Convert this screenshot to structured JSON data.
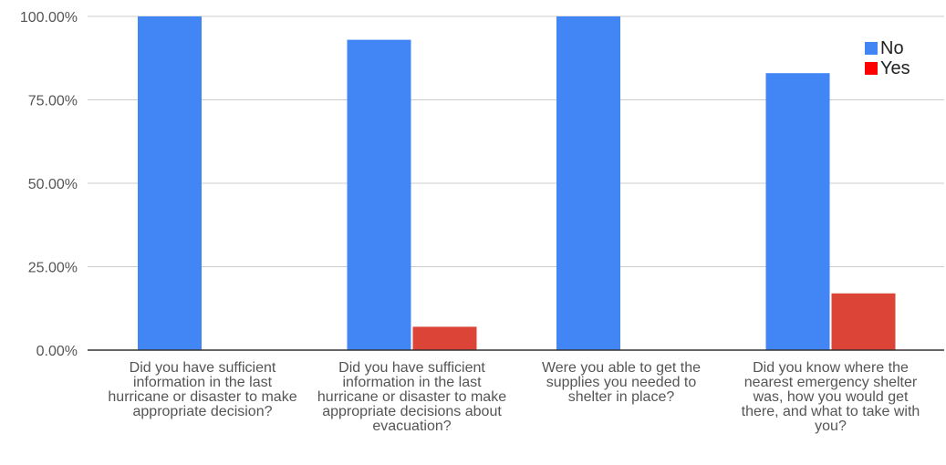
{
  "chart_data": {
    "type": "bar",
    "categories": [
      "Did you have sufficient information in the last hurricane or disaster to make appropriate decision?",
      "Did you have sufficient information in the last hurricane or disaster to make appropriate decisions about evacuation?",
      "Were you able to get the supplies you needed to shelter in place?",
      "Did you know where the nearest emergency shelter was, how you would get there, and what to take with you?"
    ],
    "series": [
      {
        "name": "No",
        "color": "#4285f4",
        "values": [
          100,
          93,
          100,
          83
        ]
      },
      {
        "name": "Yes",
        "color": "#db4437",
        "values": [
          0,
          7,
          0,
          17
        ]
      }
    ],
    "yticks": [
      "0.00%",
      "25.00%",
      "50.00%",
      "75.00%",
      "100.00%"
    ],
    "ylim": [
      0,
      100
    ],
    "grid": true,
    "legend_position": "top-right"
  }
}
